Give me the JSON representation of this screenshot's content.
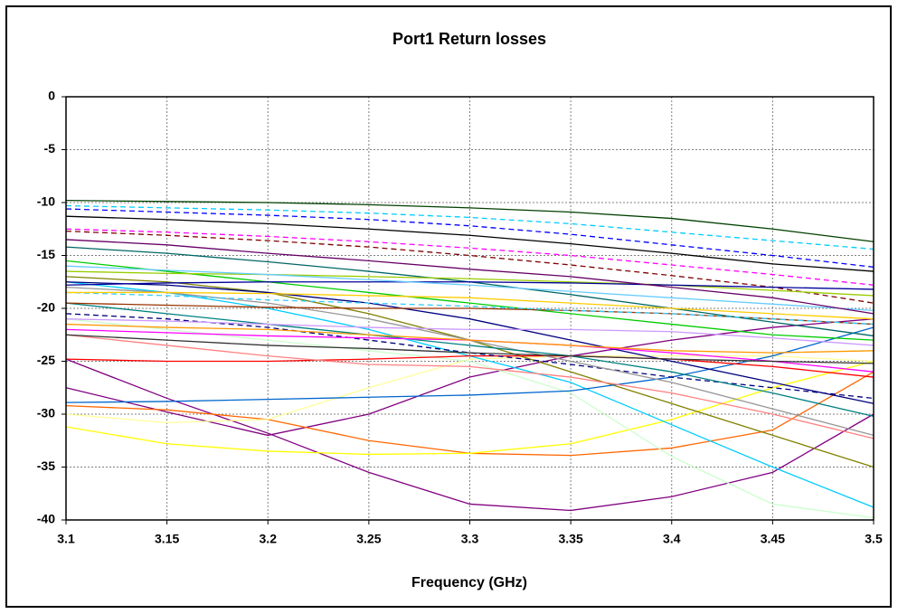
{
  "chart_data": {
    "type": "line",
    "title": "Port1 Return losses",
    "xlabel": "Frequency (GHz)",
    "x": [
      3.1,
      3.15,
      3.2,
      3.25,
      3.3,
      3.35,
      3.4,
      3.45,
      3.5
    ],
    "xlim": [
      3.1,
      3.5
    ],
    "xticks": [
      3.1,
      3.15,
      3.2,
      3.25,
      3.3,
      3.35,
      3.4,
      3.45,
      3.5
    ],
    "ylim": [
      -40,
      0
    ],
    "yticks": [
      -40,
      -35,
      -30,
      -25,
      -20,
      -15,
      -10,
      -5,
      0
    ],
    "grid": true,
    "series": [
      {
        "color": "#004000",
        "values": [
          -9.8,
          -9.9,
          -10.0,
          -10.2,
          -10.5,
          -10.9,
          -11.5,
          -12.5,
          -13.7
        ]
      },
      {
        "color": "#00ccff",
        "dashed": true,
        "values": [
          -10.3,
          -10.5,
          -10.7,
          -11.0,
          -11.4,
          -12.0,
          -12.8,
          -13.6,
          -14.4
        ]
      },
      {
        "color": "#0000ff",
        "dashed": true,
        "values": [
          -10.6,
          -10.9,
          -11.2,
          -11.6,
          -12.2,
          -13.0,
          -14.0,
          -15.0,
          -16.1
        ]
      },
      {
        "color": "#000000",
        "values": [
          -11.3,
          -11.6,
          -12.0,
          -12.5,
          -13.1,
          -13.9,
          -14.8,
          -15.8,
          -16.5
        ]
      },
      {
        "color": "#ff00ff",
        "dashed": true,
        "values": [
          -12.5,
          -12.8,
          -13.2,
          -13.7,
          -14.3,
          -15.0,
          -15.9,
          -16.8,
          -17.8
        ]
      },
      {
        "color": "#800000",
        "dashed": true,
        "values": [
          -12.7,
          -13.1,
          -13.6,
          -14.2,
          -15.0,
          -15.9,
          -16.9,
          -18.0,
          -19.5
        ]
      },
      {
        "color": "#800080",
        "values": [
          -24.8,
          -28.5,
          -31.8,
          -35.5,
          -38.5,
          -39.1,
          -37.8,
          -35.5,
          -30.0
        ]
      },
      {
        "color": "#800080",
        "values": [
          -27.5,
          -29.8,
          -32.0,
          -30.0,
          -26.5,
          -24.5,
          -23.0,
          -21.8,
          -21.0
        ]
      },
      {
        "color": "#ff6600",
        "values": [
          -29.2,
          -29.6,
          -30.5,
          -32.5,
          -33.7,
          -33.9,
          -33.2,
          -31.5,
          -26.0
        ]
      },
      {
        "color": "#ffff00",
        "values": [
          -31.2,
          -32.8,
          -33.5,
          -33.8,
          -33.7,
          -32.8,
          -30.5,
          -27.5,
          -25.0
        ]
      },
      {
        "color": "#ffff99",
        "values": [
          -30.0,
          -30.8,
          -30.5,
          -27.5,
          -24.8,
          -24.5,
          -24.5,
          -24.5,
          -25.0
        ]
      },
      {
        "color": "#ccffcc",
        "values": [
          -21.0,
          -22.0,
          -23.0,
          -24.0,
          -25.0,
          -28.0,
          -34.0,
          -38.5,
          -39.8
        ]
      },
      {
        "color": "#00ccff",
        "values": [
          -17.5,
          -18.5,
          -20.0,
          -22.0,
          -24.5,
          -27.0,
          -31.0,
          -35.0,
          -38.8
        ]
      },
      {
        "color": "#808000",
        "values": [
          -17.0,
          -17.5,
          -18.5,
          -20.5,
          -23.0,
          -26.0,
          -29.0,
          -32.0,
          -35.0
        ]
      },
      {
        "color": "#0066cc",
        "values": [
          -28.9,
          -28.8,
          -28.6,
          -28.4,
          -28.2,
          -27.8,
          -26.5,
          -24.5,
          -21.8
        ]
      },
      {
        "color": "#ff0000",
        "values": [
          -24.8,
          -25.0,
          -25.0,
          -24.8,
          -24.5,
          -24.5,
          -24.8,
          -25.5,
          -26.5
        ]
      },
      {
        "color": "#ff8080",
        "values": [
          -22.5,
          -23.5,
          -24.5,
          -25.3,
          -25.5,
          -26.5,
          -28.0,
          -30.0,
          -32.3
        ]
      },
      {
        "color": "#000080",
        "dashed": true,
        "values": [
          -20.5,
          -21.0,
          -21.8,
          -23.0,
          -24.2,
          -25.3,
          -26.5,
          -27.5,
          -28.5
        ]
      },
      {
        "color": "#000080",
        "values": [
          -17.5,
          -17.8,
          -18.5,
          -19.5,
          -21.0,
          -23.0,
          -25.0,
          -27.0,
          -29.0
        ]
      },
      {
        "color": "#969696",
        "values": [
          -18.0,
          -18.5,
          -19.5,
          -21.0,
          -23.0,
          -25.0,
          -27.0,
          -29.5,
          -32.0
        ]
      },
      {
        "color": "#008080",
        "values": [
          -19.5,
          -20.5,
          -21.5,
          -22.5,
          -23.5,
          -24.5,
          -26.0,
          -28.0,
          -30.2
        ]
      },
      {
        "color": "#00cc00",
        "values": [
          -15.5,
          -16.5,
          -17.5,
          -18.5,
          -19.5,
          -20.5,
          -21.5,
          -22.5,
          -23.0
        ]
      },
      {
        "color": "#ff00ff",
        "values": [
          -22.0,
          -22.3,
          -22.6,
          -22.8,
          -23.0,
          -23.5,
          -24.2,
          -25.0,
          -26.0
        ]
      },
      {
        "color": "#993300",
        "values": [
          -19.5,
          -19.7,
          -19.9,
          -20.0,
          -20.0,
          -20.2,
          -20.5,
          -21.0,
          -21.5
        ]
      },
      {
        "color": "#006666",
        "values": [
          -14.2,
          -14.8,
          -15.6,
          -16.5,
          -17.5,
          -18.7,
          -20.0,
          -21.3,
          -22.6
        ]
      },
      {
        "color": "#99cc00",
        "values": [
          -16.5,
          -16.7,
          -16.8,
          -17.0,
          -17.2,
          -17.5,
          -17.8,
          -18.3,
          -18.8
        ]
      },
      {
        "color": "#000099",
        "values": [
          -17.8,
          -17.6,
          -17.5,
          -17.5,
          -17.5,
          -17.6,
          -17.8,
          -18.0,
          -18.2
        ]
      },
      {
        "color": "#66ccff",
        "values": [
          -16.0,
          -16.4,
          -16.8,
          -17.3,
          -17.8,
          -18.4,
          -19.0,
          -19.6,
          -20.2
        ]
      },
      {
        "color": "#ff9900",
        "values": [
          -21.5,
          -21.8,
          -22.0,
          -22.5,
          -23.0,
          -23.5,
          -24.0,
          -24.2,
          -24.0
        ]
      },
      {
        "color": "#660066",
        "values": [
          -13.5,
          -14.0,
          -14.8,
          -15.5,
          -16.3,
          -17.0,
          -18.0,
          -19.0,
          -20.5
        ]
      },
      {
        "color": "#cc99ff",
        "values": [
          -21.0,
          -21.2,
          -21.5,
          -21.8,
          -22.0,
          -22.0,
          -22.2,
          -22.8,
          -23.5
        ]
      },
      {
        "color": "#333333",
        "values": [
          -22.5,
          -23.0,
          -23.5,
          -23.8,
          -24.2,
          -24.5,
          -24.8,
          -25.0,
          -25.2
        ]
      },
      {
        "color": "#33ccff",
        "dashed": true,
        "values": [
          -18.5,
          -18.8,
          -19.2,
          -19.5,
          -19.8,
          -20.2,
          -20.5,
          -21.0,
          -21.5
        ]
      },
      {
        "color": "#ffcc00",
        "values": [
          -18.5,
          -18.5,
          -18.6,
          -18.8,
          -19.0,
          -19.5,
          -20.0,
          -20.5,
          -21.0
        ]
      }
    ]
  }
}
